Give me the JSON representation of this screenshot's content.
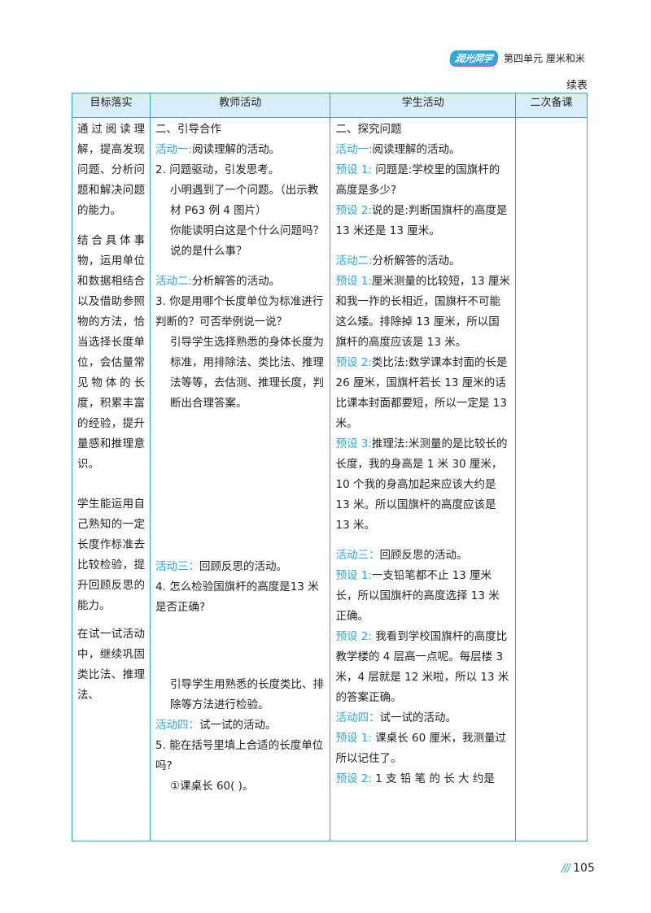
{
  "header": {
    "logo_text": "润光同学",
    "unit_title": "第四单元  厘米和米"
  },
  "continued_label": "续表",
  "table": {
    "headers": [
      "目标落实",
      "教师活动",
      "学生活动",
      "二次备课"
    ],
    "goals": [
      "通过阅读理解，提高发现问题、分析问题和解决问题的能力。",
      "结合具体事物，运用单位和数据相结合以及借助参照物的方法，恰当选择长度单位，会估量常见物体的长度，积累丰富的经验，提升量感和推理意识。",
      "学生能运用自己熟知的一定长度作标准去比较检验，提升回顾反思的能力。",
      "在试一试活动中，继续巩固类比法、推理法、"
    ],
    "teacher": [
      {
        "type": "plain",
        "text": "二、引导合作"
      },
      {
        "type": "label",
        "label": "活动一:",
        "text": "阅读理解的活动。"
      },
      {
        "type": "plain",
        "text": "2. 问题驱动，引发思考。"
      },
      {
        "type": "indent",
        "text": "小明遇到了一个问题。（出示教材 P63 例 4 图片）"
      },
      {
        "type": "indent",
        "text": "你能读明白这是个什么问题吗？说的是什么事？"
      },
      {
        "type": "label",
        "label": "活动二:",
        "text": "分析解答的活动。",
        "gap": true
      },
      {
        "type": "plain",
        "text": "3. 你是用哪个长度单位为标准进行判断的？可否举例说一说？"
      },
      {
        "type": "indent",
        "text": "引导学生选择熟悉的身体长度为标准，用排除法、类比法、推理法等等，去估测、推理长度，判断出合理答案。"
      },
      {
        "type": "label",
        "label": "活动三：",
        "text": "回顾反思的活动。",
        "gap": true
      },
      {
        "type": "plain",
        "text": "4. 怎么检验国旗杆的高度是13 米是否正确?"
      },
      {
        "type": "indent",
        "text": "引导学生用熟悉的长度类比、排除等方法进行检验。"
      },
      {
        "type": "label",
        "label": "活动四：",
        "text": "试一试的活动。"
      },
      {
        "type": "plain",
        "text": "5. 能在括号里填上合适的长度单位吗?"
      },
      {
        "type": "indent",
        "text": "①课桌长 60(      )。"
      }
    ],
    "student": [
      {
        "type": "plain",
        "text": "二、探究问题"
      },
      {
        "type": "label",
        "label": "活动一:",
        "text": "阅读理解的活动。"
      },
      {
        "type": "label",
        "label": "预设 1:",
        "text": " 问题是:学校里的国旗杆的高度是多少?"
      },
      {
        "type": "label",
        "label": "预设 2:",
        "text": "说的是:判断国旗杆的高度是 13 米还是 13 厘米。"
      },
      {
        "type": "label",
        "label": "活动二:",
        "text": "分析解答的活动。",
        "gap": true
      },
      {
        "type": "label",
        "label": "预设 1:",
        "text": "厘米测量的比较短，13 厘米和我一拃的长相近，国旗杆不可能这么矮。排除掉 13 厘米，所以国旗杆的高度应该是 13 米。"
      },
      {
        "type": "label",
        "label": "预设 2:",
        "text": "类比法:数学课本封面的长是 26 厘米，国旗杆若长 13 厘米的话比课本封面都要短，所以一定是 13 米。"
      },
      {
        "type": "label",
        "label": "预设 3:",
        "text": "推理法:米测量的是比较长的长度，我的身高是 1 米 30 厘米，10 个我的身高加起来应该大约是 13 米。所以国旗杆的高度应该是 13 米。"
      },
      {
        "type": "label",
        "label": "活动三：",
        "text": "回顾反思的活动。",
        "gap": true
      },
      {
        "type": "label",
        "label": "预设 1:",
        "text": "一支铅笔都不止 13 厘米长，所以国旗杆的高度选择 13 米正确。"
      },
      {
        "type": "label",
        "label": "预设 2:",
        "text": " 我看到学校国旗杆的高度比教学楼的 4 层高一点呢。每层楼 3 米，4 层就是 12 米啦，所以 13 米的答案正确。"
      },
      {
        "type": "label",
        "label": "活动四：",
        "text": "试一试的活动。"
      },
      {
        "type": "label",
        "label": "预设 1:",
        "text": " 课桌长 60 厘米，我测量过所以记住了。"
      },
      {
        "type": "label",
        "label": "预设 2:",
        "text": " 1 支 铅 笔 的 长 大 约是"
      }
    ]
  },
  "page_number": "105",
  "page_marker": "///",
  "colors": {
    "accent": "#2aa7df",
    "header_bg": "#d5eef8",
    "text": "#231f20"
  }
}
